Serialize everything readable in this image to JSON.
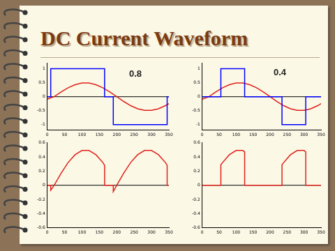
{
  "slide_title": "DC Current Waveform",
  "chart_data": [
    {
      "type": "line",
      "annotation": "0.8",
      "xlim": [
        0,
        350
      ],
      "xticks": [
        0,
        50,
        100,
        150,
        200,
        250,
        300,
        350
      ],
      "ylim": [
        -1.2,
        1.2
      ],
      "yticks": [
        -1,
        -0.5,
        0,
        0.5,
        1
      ],
      "grid": false,
      "series": [
        {
          "color": "#0000ff",
          "x": [
            0,
            10,
            10,
            165,
            165,
            190,
            190,
            345,
            345,
            350
          ],
          "values": [
            0,
            0,
            1,
            1,
            0,
            0,
            -1,
            -1,
            0,
            0
          ]
        },
        {
          "color": "#e0201a",
          "x": [
            0,
            20,
            40,
            60,
            80,
            100,
            120,
            140,
            160,
            180,
            200,
            220,
            240,
            260,
            280,
            300,
            320,
            340,
            350
          ],
          "values": [
            -0.09,
            0,
            0.17,
            0.32,
            0.43,
            0.49,
            0.49,
            0.43,
            0.32,
            0.17,
            0,
            -0.17,
            -0.32,
            -0.43,
            -0.49,
            -0.49,
            -0.43,
            -0.32,
            -0.25
          ]
        }
      ]
    },
    {
      "type": "line",
      "annotation": "0.4",
      "xlim": [
        0,
        350
      ],
      "xticks": [
        0,
        50,
        100,
        150,
        200,
        250,
        300,
        350
      ],
      "ylim": [
        -1.2,
        1.2
      ],
      "yticks": [
        -1,
        -0.5,
        0,
        0.5,
        1
      ],
      "grid": false,
      "series": [
        {
          "color": "#0000ff",
          "x": [
            0,
            55,
            55,
            125,
            125,
            235,
            235,
            305,
            305,
            350
          ],
          "values": [
            0,
            0,
            1,
            1,
            0,
            0,
            -1,
            -1,
            0,
            0
          ]
        },
        {
          "color": "#e0201a",
          "x": [
            0,
            20,
            40,
            60,
            80,
            100,
            120,
            140,
            160,
            180,
            200,
            220,
            240,
            260,
            280,
            300,
            320,
            340,
            350
          ],
          "values": [
            -0.09,
            0,
            0.17,
            0.32,
            0.43,
            0.49,
            0.49,
            0.43,
            0.32,
            0.17,
            0,
            -0.17,
            -0.32,
            -0.43,
            -0.49,
            -0.49,
            -0.43,
            -0.32,
            -0.25
          ]
        }
      ]
    },
    {
      "type": "line",
      "xlim": [
        0,
        350
      ],
      "xticks": [
        0,
        50,
        100,
        150,
        200,
        250,
        300,
        350
      ],
      "ylim": [
        -0.6,
        0.6
      ],
      "yticks": [
        -0.6,
        -0.4,
        -0.2,
        0,
        0.2,
        0.4,
        0.6
      ],
      "grid": false,
      "series": [
        {
          "color": "#e0201a",
          "x": [
            0,
            10,
            10,
            20,
            40,
            60,
            80,
            100,
            120,
            140,
            160,
            165,
            165,
            190,
            190,
            200,
            220,
            240,
            260,
            280,
            300,
            320,
            340,
            345,
            345,
            350
          ],
          "values": [
            0,
            0,
            -0.07,
            0,
            0.17,
            0.32,
            0.43,
            0.49,
            0.49,
            0.43,
            0.32,
            0.28,
            0,
            0,
            -0.09,
            0,
            0.17,
            0.32,
            0.43,
            0.49,
            0.49,
            0.43,
            0.32,
            0.28,
            0,
            0
          ]
        }
      ]
    },
    {
      "type": "line",
      "xlim": [
        0,
        350
      ],
      "xticks": [
        0,
        50,
        100,
        150,
        200,
        250,
        300,
        350
      ],
      "ylim": [
        -0.6,
        0.6
      ],
      "yticks": [
        -0.6,
        -0.4,
        -0.2,
        0,
        0.2,
        0.4,
        0.6
      ],
      "grid": false,
      "series": [
        {
          "color": "#e0201a",
          "x": [
            0,
            55,
            55,
            60,
            80,
            100,
            120,
            125,
            125,
            235,
            235,
            240,
            260,
            280,
            300,
            305,
            305,
            350
          ],
          "values": [
            0,
            0,
            0.29,
            0.32,
            0.43,
            0.49,
            0.49,
            0.47,
            0,
            0,
            0.29,
            0.32,
            0.43,
            0.49,
            0.49,
            0.47,
            0,
            0
          ]
        }
      ]
    }
  ]
}
